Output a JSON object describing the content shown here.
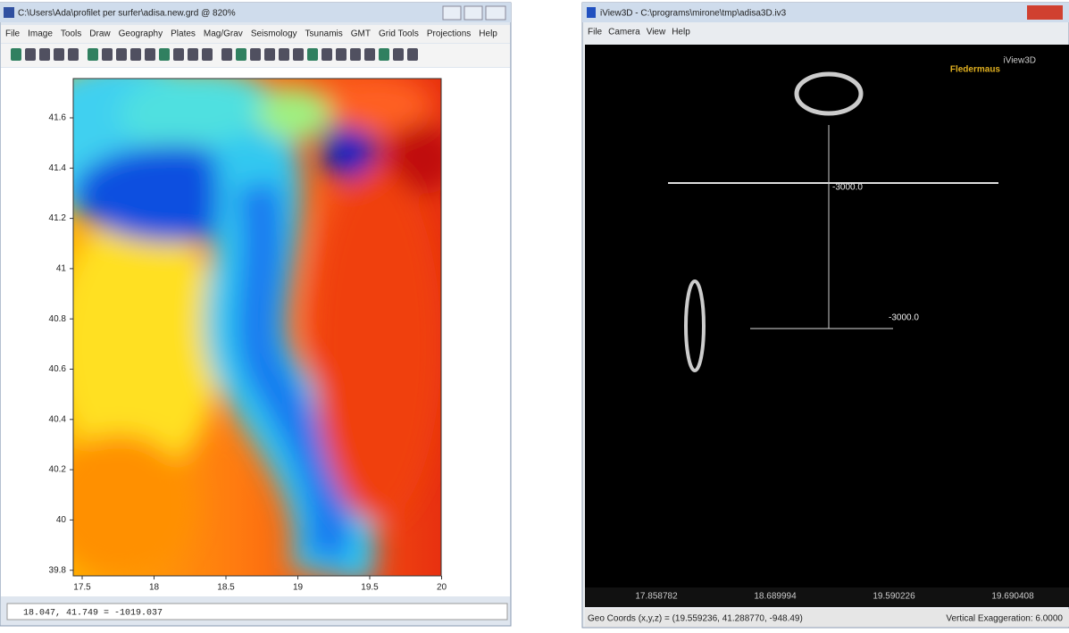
{
  "left_window": {
    "title": "C:\\Users\\Ada\\profilet per surfer\\adisa.new.grd @ 820%",
    "menu": [
      "File",
      "Image",
      "Tools",
      "Draw",
      "Geography",
      "Plates",
      "Mag/Grav",
      "Seismology",
      "Tsunamis",
      "GMT",
      "Grid Tools",
      "Projections",
      "Help"
    ],
    "y_ticks": [
      "41.6",
      "41.4",
      "41.2",
      "41",
      "40.8",
      "40.6",
      "40.4",
      "40.2",
      "40",
      "39.8"
    ],
    "x_ticks": [
      "17.5",
      "18",
      "18.5",
      "19",
      "19.5",
      "20"
    ],
    "status": "18.047, 41.749 = -1019.037"
  },
  "right_window": {
    "title": "iView3D - C:\\programs\\mirone\\tmp\\adisa3D.iv3",
    "menu": [
      "File",
      "Camera",
      "View",
      "Help"
    ],
    "logo": "Fledermaus",
    "logo_sub": "iView3D",
    "surface_labels": [
      "-3000.0",
      "-3000.0"
    ],
    "x_labels": [
      "17.858782",
      "18.689994",
      "19.590226",
      "19.690408"
    ],
    "status_left": "Geo Coords (x,y,z) = (19.559236, 41.288770, -948.49)",
    "status_right": "Vertical Exaggeration: 6.0000"
  }
}
